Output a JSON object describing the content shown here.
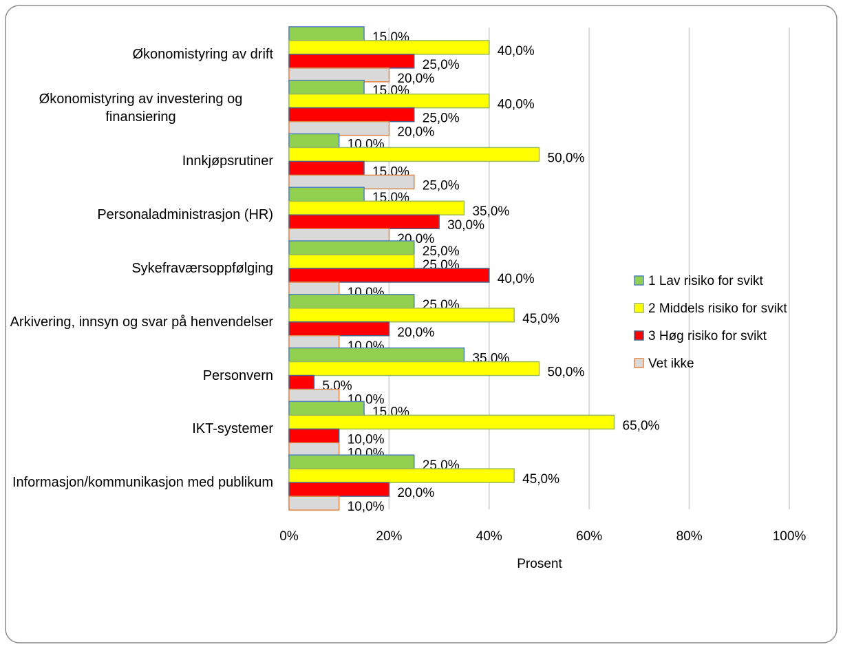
{
  "chart_data": {
    "type": "barh",
    "x_label": "Prosent",
    "categories": [
      "Økonomistyring av drift",
      "Økonomistyring av investering og finansiering",
      "Innkjøpsrutiner",
      "Personaladministrasjon (HR)",
      "Sykefraværsoppfølging",
      "Arkivering, innsyn og svar på henvendelser",
      "Personvern",
      "IKT-systemer",
      "Informasjon/kommunikasjon med publikum"
    ],
    "series": [
      {
        "name": "1 Lav risiko for svikt",
        "color": "#92d050",
        "edgecolor": "#4f81bd",
        "values": [
          15,
          15,
          10,
          15,
          25,
          25,
          35,
          15,
          25
        ],
        "value_labels": [
          "15,0%",
          "15,0%",
          "10,0%",
          "15,0%",
          "25,0%",
          "25,0%",
          "35,0%",
          "15,0%",
          "25,0%"
        ]
      },
      {
        "name": "2 Middels risiko for svikt",
        "color": "#ffff00",
        "edgecolor": "#9bbb59",
        "values": [
          40,
          40,
          50,
          35,
          25,
          45,
          50,
          65,
          45
        ],
        "value_labels": [
          "40,0%",
          "40,0%",
          "50,0%",
          "35,0%",
          "25,0%",
          "45,0%",
          "50,0%",
          "65,0%",
          "45,0%"
        ]
      },
      {
        "name": "3 Høg risiko for svikt",
        "color": "#ff0000",
        "edgecolor": "#4f6289",
        "values": [
          25,
          25,
          15,
          30,
          40,
          20,
          5,
          10,
          20
        ],
        "value_labels": [
          "25,0%",
          "25,0%",
          "15,0%",
          "30,0%",
          "40,0%",
          "20,0%",
          "5,0%",
          "10,0%",
          "20,0%"
        ]
      },
      {
        "name": "Vet ikke",
        "color": "#d9d9d9",
        "edgecolor": "#e0874a",
        "values": [
          20,
          20,
          25,
          20,
          10,
          10,
          10,
          10,
          10
        ],
        "value_labels": [
          "20,0%",
          "20,0%",
          "25,0%",
          "20,0%",
          "10,0%",
          "10,0%",
          "10,0%",
          "10,0%",
          "10,0%"
        ]
      }
    ],
    "xlim": [
      0,
      100
    ],
    "xticks": [
      {
        "value": 0,
        "label": "0%"
      },
      {
        "value": 20,
        "label": "20%"
      },
      {
        "value": 40,
        "label": "40%"
      },
      {
        "value": 60,
        "label": "60%"
      },
      {
        "value": 80,
        "label": "80%"
      },
      {
        "value": 100,
        "label": "100%"
      }
    ],
    "grid": true,
    "legend": "right"
  }
}
